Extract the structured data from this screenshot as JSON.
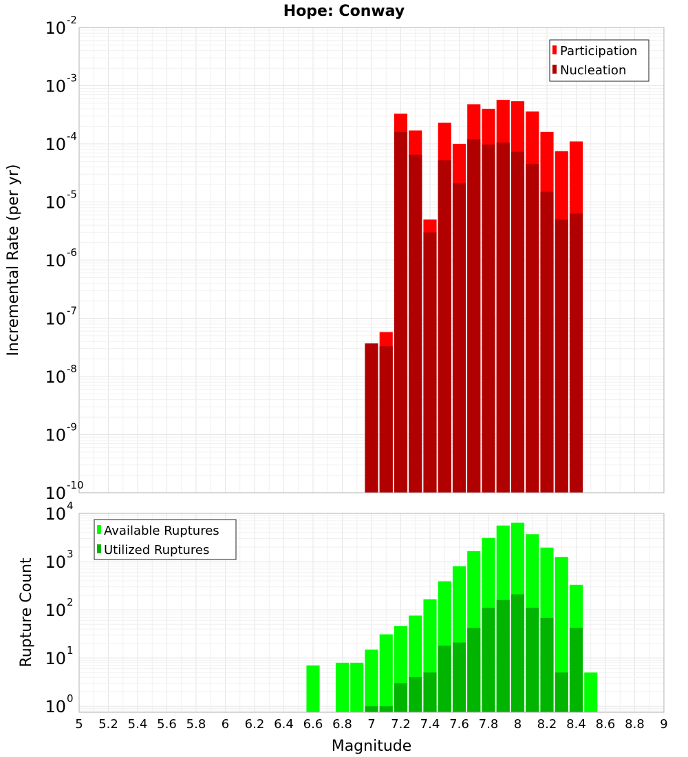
{
  "title": "Hope: Conway",
  "colors": {
    "participation": "#ff0000",
    "nucleation": "#b00000",
    "available": "#00ff00",
    "utilized": "#00b400"
  },
  "chart_data": [
    {
      "type": "bar",
      "panel": "top",
      "ylabel": "Incremental Rate (per yr)",
      "yscale": "log",
      "ylim": [
        1e-10,
        0.01
      ],
      "xlim": [
        5,
        9
      ],
      "legend": {
        "placement": "top-right",
        "entries": [
          "Participation",
          "Nucleation"
        ]
      },
      "grid": true,
      "x": [
        7.0,
        7.1,
        7.2,
        7.3,
        7.4,
        7.5,
        7.6,
        7.7,
        7.8,
        7.9,
        8.0,
        8.1,
        8.2,
        8.3,
        8.4
      ],
      "series": [
        {
          "name": "Participation",
          "values": [
            3.7e-08,
            5.8e-08,
            0.00033,
            0.00017,
            5e-06,
            0.00023,
            0.0001,
            0.00048,
            0.0004,
            0.00057,
            0.00054,
            0.00036,
            0.00016,
            7.5e-05,
            0.00011
          ]
        },
        {
          "name": "Nucleation",
          "values": [
            3.7e-08,
            3.3e-08,
            0.00016,
            6.5e-05,
            3e-06,
            5.2e-05,
            2.1e-05,
            0.00012,
            9.7e-05,
            0.000105,
            7.3e-05,
            4.5e-05,
            1.5e-05,
            5e-06,
            6.3e-06
          ]
        }
      ]
    },
    {
      "type": "bar",
      "panel": "bottom",
      "ylabel": "Rupture Count",
      "xlabel": "Magnitude",
      "yscale": "log",
      "ylim": [
        0.75,
        10000
      ],
      "xlim": [
        5,
        9
      ],
      "legend": {
        "placement": "top-left",
        "entries": [
          "Available Ruptures",
          "Utilized Ruptures"
        ]
      },
      "grid": true,
      "x": [
        6.6,
        6.8,
        6.9,
        7.0,
        7.1,
        7.2,
        7.3,
        7.4,
        7.5,
        7.6,
        7.7,
        7.8,
        7.9,
        8.0,
        8.1,
        8.2,
        8.3,
        8.4,
        8.5
      ],
      "series": [
        {
          "name": "Available Ruptures",
          "values": [
            7,
            8,
            8,
            15,
            31,
            46,
            76,
            165,
            390,
            800,
            1650,
            3100,
            5600,
            6400,
            3700,
            1950,
            1250,
            330,
            5
          ]
        },
        {
          "name": "Utilized Ruptures",
          "values": [
            0,
            0,
            0,
            1,
            1,
            3,
            4,
            5,
            18,
            21,
            42,
            110,
            160,
            210,
            110,
            68,
            5,
            42,
            0
          ]
        }
      ]
    }
  ],
  "xticks": [
    "5",
    "5.2",
    "5.4",
    "5.6",
    "5.8",
    "6",
    "6.2",
    "6.4",
    "6.6",
    "6.8",
    "7",
    "7.2",
    "7.4",
    "7.6",
    "7.8",
    "8",
    "8.2",
    "8.4",
    "8.6",
    "8.8",
    "9"
  ],
  "top_yticks": [
    {
      "base": "10",
      "exp": "-10"
    },
    {
      "base": "10",
      "exp": "-9"
    },
    {
      "base": "10",
      "exp": "-8"
    },
    {
      "base": "10",
      "exp": "-7"
    },
    {
      "base": "10",
      "exp": "-6"
    },
    {
      "base": "10",
      "exp": "-5"
    },
    {
      "base": "10",
      "exp": "-4"
    },
    {
      "base": "10",
      "exp": "-3"
    },
    {
      "base": "10",
      "exp": "-2"
    }
  ],
  "bottom_yticks": [
    {
      "base": "10",
      "exp": "0"
    },
    {
      "base": "10",
      "exp": "1"
    },
    {
      "base": "10",
      "exp": "2"
    },
    {
      "base": "10",
      "exp": "3"
    },
    {
      "base": "10",
      "exp": "4"
    }
  ]
}
